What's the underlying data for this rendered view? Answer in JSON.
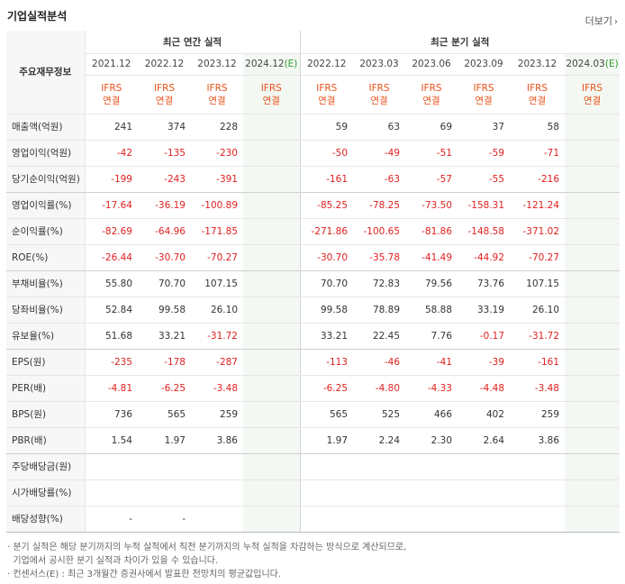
{
  "header": {
    "title": "기업실적분석",
    "more_label": "더보기",
    "more_icon": "chevron-right-icon"
  },
  "table": {
    "corner_label": "주요재무정보",
    "group_annual": "최근 연간 실적",
    "group_quarter": "최근 분기 실적",
    "annual_periods": [
      "2021.12",
      "2022.12",
      "2023.12",
      "2024.12"
    ],
    "quarter_periods": [
      "2022.12",
      "2023.03",
      "2023.06",
      "2023.09",
      "2023.12",
      "2024.03"
    ],
    "estimate_mark": "(E)",
    "ifrs_top": "IFRS",
    "ifrs_bottom": "연결",
    "rows": [
      {
        "label": "매출액(억원)",
        "annual": [
          "241",
          "374",
          "228",
          ""
        ],
        "quarter": [
          "59",
          "63",
          "69",
          "37",
          "58",
          ""
        ]
      },
      {
        "label": "영업이익(억원)",
        "annual": [
          "-42",
          "-135",
          "-230",
          ""
        ],
        "quarter": [
          "-50",
          "-49",
          "-51",
          "-59",
          "-71",
          ""
        ]
      },
      {
        "label": "당기순이익(억원)",
        "annual": [
          "-199",
          "-243",
          "-391",
          ""
        ],
        "quarter": [
          "-161",
          "-63",
          "-57",
          "-55",
          "-216",
          ""
        ]
      },
      {
        "label": "영업이익률(%)",
        "annual": [
          "-17.64",
          "-36.19",
          "-100.89",
          ""
        ],
        "quarter": [
          "-85.25",
          "-78.25",
          "-73.50",
          "-158.31",
          "-121.24",
          ""
        ]
      },
      {
        "label": "순이익률(%)",
        "annual": [
          "-82.69",
          "-64.96",
          "-171.85",
          ""
        ],
        "quarter": [
          "-271.86",
          "-100.65",
          "-81.86",
          "-148.58",
          "-371.02",
          ""
        ]
      },
      {
        "label": "ROE(%)",
        "annual": [
          "-26.44",
          "-30.70",
          "-70.27",
          ""
        ],
        "quarter": [
          "-30.70",
          "-35.78",
          "-41.49",
          "-44.92",
          "-70.27",
          ""
        ]
      },
      {
        "label": "부채비율(%)",
        "annual": [
          "55.80",
          "70.70",
          "107.15",
          ""
        ],
        "quarter": [
          "70.70",
          "72.83",
          "79.56",
          "73.76",
          "107.15",
          ""
        ]
      },
      {
        "label": "당좌비율(%)",
        "annual": [
          "52.84",
          "99.58",
          "26.10",
          ""
        ],
        "quarter": [
          "99.58",
          "78.89",
          "58.88",
          "33.19",
          "26.10",
          ""
        ]
      },
      {
        "label": "유보율(%)",
        "annual": [
          "51.68",
          "33.21",
          "-31.72",
          ""
        ],
        "quarter": [
          "33.21",
          "22.45",
          "7.76",
          "-0.17",
          "-31.72",
          ""
        ]
      },
      {
        "label": "EPS(원)",
        "annual": [
          "-235",
          "-178",
          "-287",
          ""
        ],
        "quarter": [
          "-113",
          "-46",
          "-41",
          "-39",
          "-161",
          ""
        ]
      },
      {
        "label": "PER(배)",
        "annual": [
          "-4.81",
          "-6.25",
          "-3.48",
          ""
        ],
        "quarter": [
          "-6.25",
          "-4.80",
          "-4.33",
          "-4.48",
          "-3.48",
          ""
        ]
      },
      {
        "label": "BPS(원)",
        "annual": [
          "736",
          "565",
          "259",
          ""
        ],
        "quarter": [
          "565",
          "525",
          "466",
          "402",
          "259",
          ""
        ]
      },
      {
        "label": "PBR(배)",
        "annual": [
          "1.54",
          "1.97",
          "3.86",
          ""
        ],
        "quarter": [
          "1.97",
          "2.24",
          "2.30",
          "2.64",
          "3.86",
          ""
        ]
      },
      {
        "label": "주당배당금(원)",
        "annual": [
          "",
          "",
          "",
          ""
        ],
        "quarter": [
          "",
          "",
          "",
          "",
          "",
          ""
        ]
      },
      {
        "label": "시가배당률(%)",
        "annual": [
          "",
          "",
          "",
          ""
        ],
        "quarter": [
          "",
          "",
          "",
          "",
          "",
          ""
        ]
      },
      {
        "label": "배당성향(%)",
        "annual": [
          "-",
          "-",
          "",
          ""
        ],
        "quarter": [
          "",
          "",
          "",
          "",
          "",
          ""
        ]
      }
    ]
  },
  "notes": {
    "line1": "· 분기 실적은 해당 분기까지의 누적 실적에서 직전 분기까지의 누적 실적을 차감하는 방식으로 계산되므로,",
    "line2": "  기업에서 공시한 분기 실적과 차이가 있을 수 있습니다.",
    "line3": "· 컨센서스(E) : 최근 3개월간 증권사에서 발표한 전망치의 평균값입니다."
  },
  "colors": {
    "negative": "#e02020",
    "ifrs": "#e8521a",
    "estimate_bg": "#f3f8f3",
    "estimate_mark": "#2e9a2e"
  }
}
